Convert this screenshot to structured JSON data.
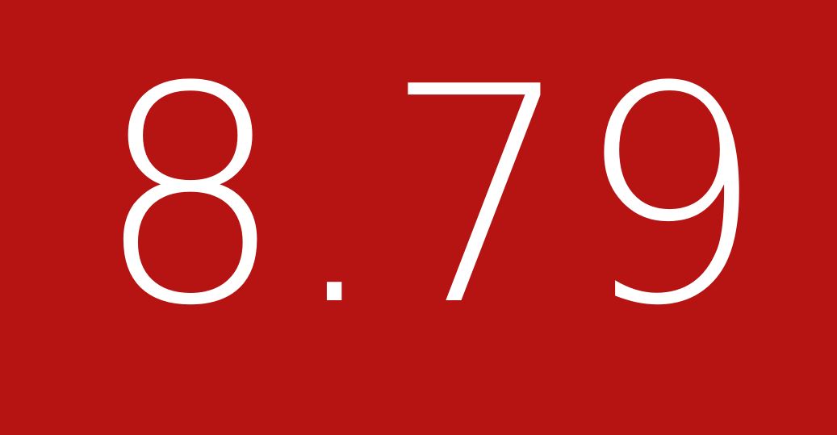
{
  "display": {
    "value": "8.79",
    "background_color": "#b51412",
    "text_color": "#ffffff"
  }
}
